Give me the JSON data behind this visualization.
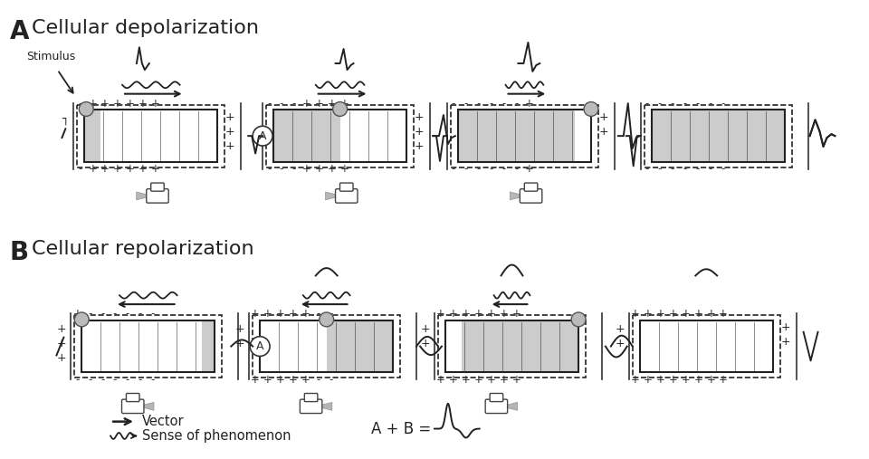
{
  "bg_color": "#ffffff",
  "title_A": "Cellular depolarization",
  "title_B": "Cellular repolarization",
  "label_A": "A",
  "label_B": "B",
  "cell_fill": "#cccccc",
  "cell_border": "#333333",
  "text_color": "#222222",
  "legend_vector": "Vector",
  "legend_sense": "Sense of phenomenon",
  "legend_eq": "A + B ="
}
